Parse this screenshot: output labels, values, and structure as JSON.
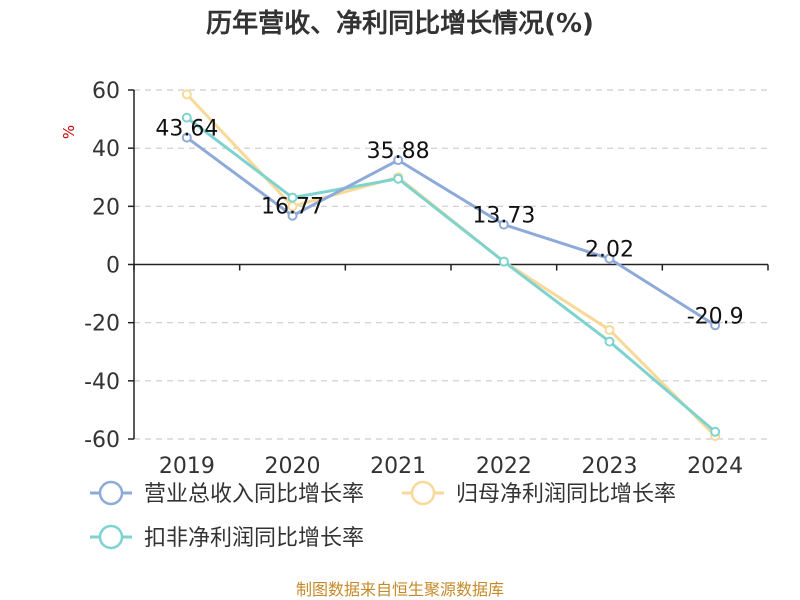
{
  "chart_data": {
    "type": "line",
    "title": "历年营收、净利同比增长情况(%)",
    "ylabel": "%",
    "xlabel": "",
    "categories": [
      "2019",
      "2020",
      "2021",
      "2022",
      "2023",
      "2024"
    ],
    "ylim": [
      -60,
      60
    ],
    "yticks": [
      60,
      40,
      20,
      0,
      -20,
      -40,
      -60
    ],
    "grid": true,
    "legend_position": "bottom",
    "series": [
      {
        "name": "营业总收入同比增长率",
        "color": "#8eaad8",
        "values": [
          43.64,
          16.77,
          35.88,
          13.73,
          2.02,
          -20.9
        ],
        "labels": [
          "43.64",
          "16.77",
          "35.88",
          "13.73",
          "2.02",
          "-20.9"
        ]
      },
      {
        "name": "归母净利润同比增长率",
        "color": "#f8d999",
        "values": [
          58.5,
          20.0,
          30.0,
          1.0,
          -22.5,
          -59.0
        ]
      },
      {
        "name": "扣非净利润同比增长率",
        "color": "#7fd3cf",
        "values": [
          50.5,
          23.0,
          29.5,
          1.0,
          -26.5,
          -57.5
        ]
      }
    ],
    "source": "制图数据来自恒生聚源数据库"
  }
}
